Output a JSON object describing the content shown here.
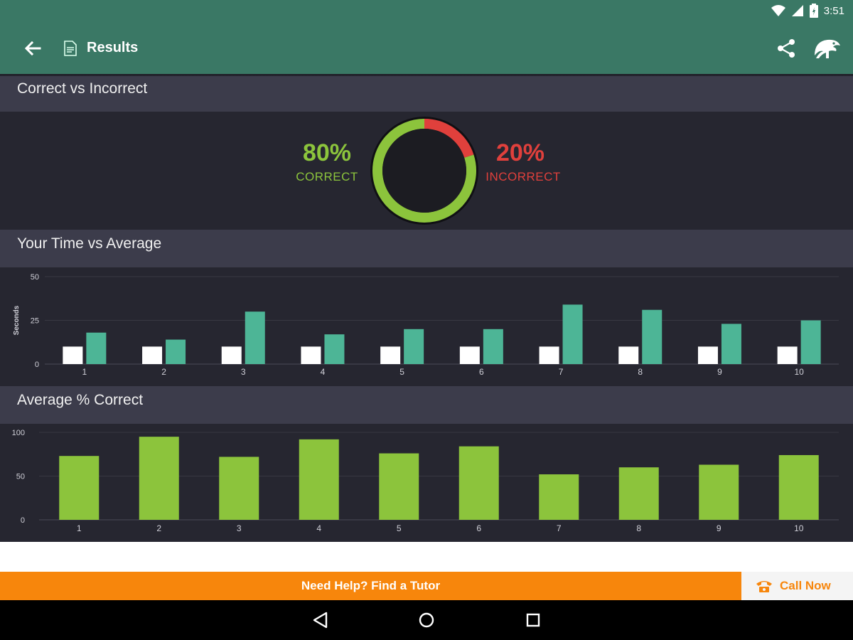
{
  "status_bar": {
    "time": "3:51",
    "icons": [
      "wifi-icon",
      "cellular-icon",
      "battery-icon"
    ]
  },
  "app_bar": {
    "title": "Results",
    "icons": [
      "back-arrow-icon",
      "document-icon",
      "share-icon",
      "chameleon-logo-icon"
    ]
  },
  "sections": {
    "correct_vs_incorrect": "Correct vs Incorrect",
    "time_vs_average": "Your Time vs Average",
    "average_correct": "Average % Correct"
  },
  "summary": {
    "correct_pct": "80%",
    "correct_label": "CORRECT",
    "incorrect_pct": "20%",
    "incorrect_label": "INCORRECT"
  },
  "colors": {
    "header": "#3a7865",
    "correct": "#8cc43c",
    "incorrect": "#e0403c",
    "average_bar": "#4db596",
    "your_bar": "#ffffff",
    "orange": "#f7860c"
  },
  "chart_data": [
    {
      "type": "pie",
      "title": "Correct vs Incorrect",
      "categories": [
        "CORRECT",
        "INCORRECT"
      ],
      "values": [
        80,
        20
      ]
    },
    {
      "type": "bar",
      "title": "Your Time vs Average",
      "ylabel": "Seconds",
      "ylim": [
        0,
        50
      ],
      "yticks": [
        0,
        25,
        50
      ],
      "grid": true,
      "categories": [
        "1",
        "2",
        "3",
        "4",
        "5",
        "6",
        "7",
        "8",
        "9",
        "10"
      ],
      "series": [
        {
          "values": [
            10,
            10,
            10,
            10,
            10,
            10,
            10,
            10,
            10,
            10
          ]
        },
        {
          "values": [
            18,
            14,
            30,
            17,
            20,
            20,
            34,
            31,
            23,
            25
          ]
        }
      ]
    },
    {
      "type": "bar",
      "title": "Average % Correct",
      "ylim": [
        0,
        100
      ],
      "yticks": [
        0,
        50,
        100
      ],
      "grid": true,
      "categories": [
        "1",
        "2",
        "3",
        "4",
        "5",
        "6",
        "7",
        "8",
        "9",
        "10"
      ],
      "values": [
        73,
        95,
        72,
        92,
        76,
        84,
        52,
        60,
        63,
        74
      ]
    }
  ],
  "footer": {
    "help_text": "Need Help? Find a Tutor",
    "call_label": "Call Now"
  },
  "nav": {
    "icons": [
      "back-triangle-icon",
      "home-circle-icon",
      "recents-square-icon"
    ]
  }
}
